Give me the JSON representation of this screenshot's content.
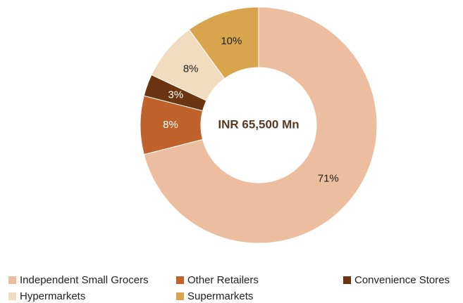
{
  "chart_data": {
    "type": "pie",
    "annotation": "INR 65,500 Mn",
    "categories": [
      "Independent Small Grocers",
      "Other Retailers",
      "Convenience Stores",
      "Hypermarkets",
      "Supermarkets"
    ],
    "values": [
      71,
      8,
      3,
      8,
      10
    ],
    "value_labels": [
      "71%",
      "8%",
      "3%",
      "8%",
      "10%"
    ],
    "colors": [
      "#ecbe9f",
      "#c0622b",
      "#6b3511",
      "#f1dcbf",
      "#d9a54c"
    ]
  }
}
